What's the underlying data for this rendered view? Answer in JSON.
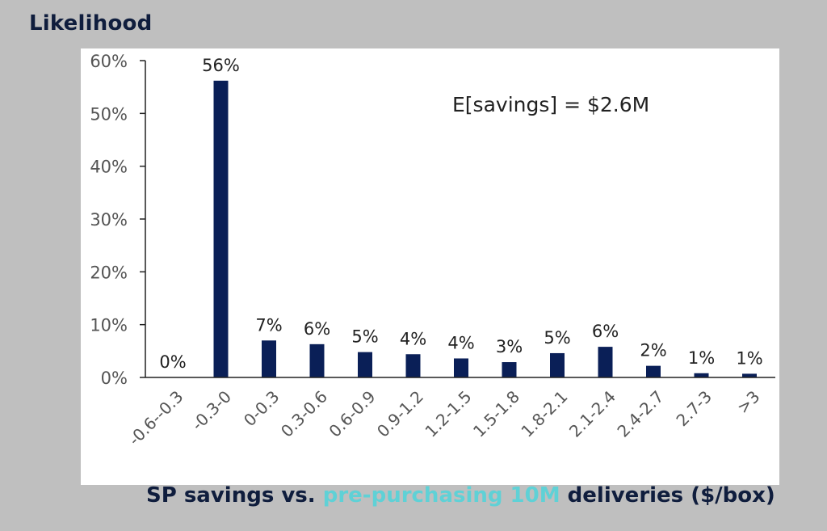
{
  "chart_data": {
    "type": "bar",
    "ylabel": "Likelihood",
    "xlabel_parts": [
      {
        "text": "SP savings vs. ",
        "highlight": false
      },
      {
        "text": "pre-purchasing 10M",
        "highlight": true
      },
      {
        "text": " deliveries ($/box)",
        "highlight": false
      }
    ],
    "categories": [
      "-0.6--0.3",
      "-0.3-0",
      "0-0.3",
      "0.3-0.6",
      "0.6-0.9",
      "0.9-1.2",
      "1.2-1.5",
      "1.5-1.8",
      "1.8-2.1",
      "2.1-2.4",
      "2.4-2.7",
      "2.7-3",
      ">3"
    ],
    "values": [
      0.0,
      56.2,
      7.0,
      6.3,
      4.8,
      4.4,
      3.6,
      2.9,
      4.6,
      5.8,
      2.2,
      0.8,
      0.7
    ],
    "data_labels": [
      "0%",
      "56%",
      "7%",
      "6%",
      "5%",
      "4%",
      "4%",
      "3%",
      "5%",
      "6%",
      "2%",
      "1%",
      "1%"
    ],
    "yticks": [
      0,
      10,
      20,
      30,
      40,
      50,
      60
    ],
    "ytick_labels": [
      "0%",
      "10%",
      "20%",
      "30%",
      "40%",
      "50%",
      "60%"
    ],
    "ylim": [
      0,
      60
    ],
    "annotation": "E[savings] = $2.6M",
    "bar_color": "#0a1f57",
    "highlight_color": "#5fd1d6",
    "grid": false
  }
}
